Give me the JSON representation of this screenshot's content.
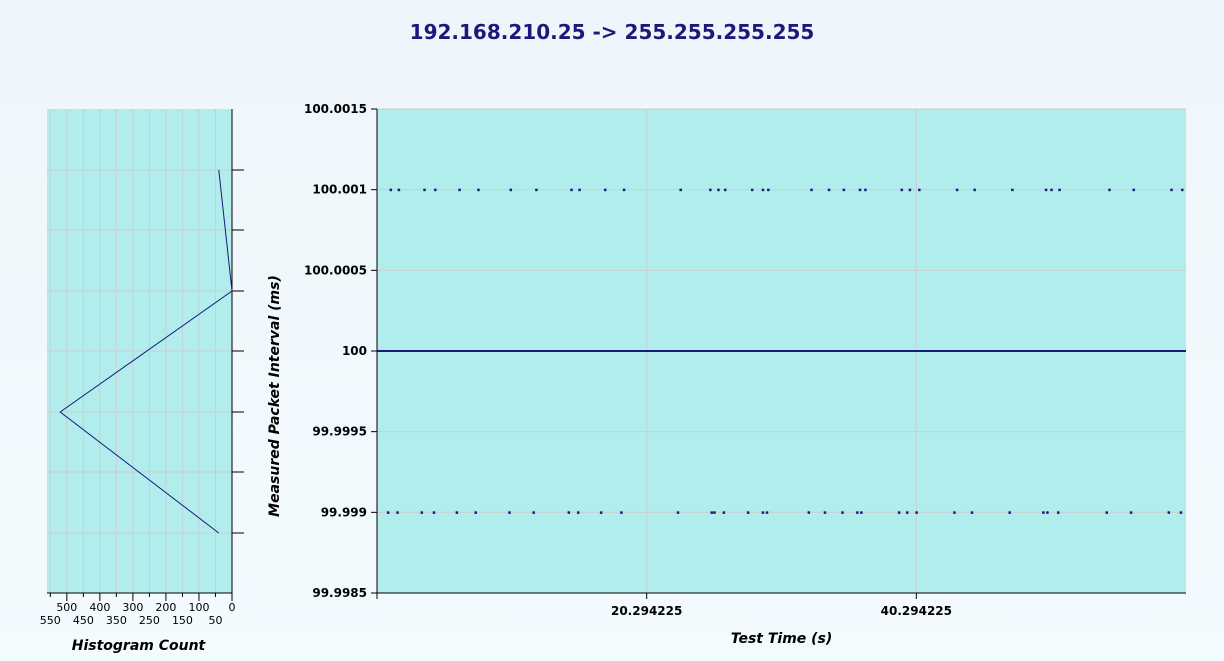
{
  "chart_data": [
    {
      "type": "scatter",
      "title": "192.168.210.25 -> 255.255.255.255",
      "xlabel": "Test Time (s)",
      "ylabel": "Measured Packet Interval (ms)",
      "xlim": [
        0.294225,
        60.294225
      ],
      "ylim": [
        99.9985,
        100.0015
      ],
      "x_ticks": [
        20.294225,
        40.294225
      ],
      "x_tick_labels": [
        "20.294225",
        "40.294225"
      ],
      "y_ticks": [
        99.9985,
        99.999,
        99.9995,
        100,
        100.0005,
        100.001,
        100.0015
      ],
      "y_tick_labels": [
        "99.9985",
        "99.999",
        "99.9995",
        "100",
        "100.0005",
        "100.001",
        "100.0015"
      ],
      "grid": true,
      "colors": {
        "plot_bg": "#b2eded",
        "series": "#1a1a7a",
        "grid": "#c8d0d0"
      },
      "series": [
        {
          "values_note_omitted": true,
          "x_high": [
            1.3,
            1.9,
            3.8,
            4.6,
            6.4,
            7.8,
            10.2,
            12.1,
            14.7,
            15.3,
            17.2,
            18.6,
            22.8,
            25.0,
            25.6,
            26.1,
            28.1,
            28.9,
            29.3,
            32.5,
            33.8,
            34.9,
            36.1,
            36.5,
            39.2,
            39.8,
            40.5,
            43.3,
            44.6,
            47.4,
            49.9,
            50.3,
            50.9,
            54.6,
            56.4,
            59.2,
            60.0
          ],
          "y_high": 100.001,
          "x_low": [
            1.1,
            1.8,
            3.6,
            4.5,
            6.2,
            7.6,
            10.1,
            11.9,
            14.5,
            15.2,
            16.9,
            18.4,
            22.6,
            25.1,
            25.3,
            26.0,
            27.8,
            28.9,
            29.2,
            32.3,
            33.5,
            34.8,
            35.9,
            36.2,
            39.0,
            39.6,
            40.3,
            43.1,
            44.4,
            47.2,
            49.7,
            50.0,
            50.8,
            54.4,
            56.2,
            59.0,
            59.9
          ],
          "y_low": 99.999,
          "y_main": 100
        }
      ]
    },
    {
      "type": "line",
      "xlabel": "Histogram Count",
      "x_reversed": true,
      "xlim": [
        0,
        560
      ],
      "x_ticks_major": [
        500,
        400,
        300,
        200,
        100,
        0
      ],
      "x_ticks_minor": [
        550,
        450,
        350,
        250,
        150,
        50
      ],
      "points": [
        {
          "count": 40,
          "interval": 100.001
        },
        {
          "count": 0,
          "interval": 100.0005
        },
        {
          "count": 0,
          "interval": 100.0005
        },
        {
          "count": 520,
          "interval": 99.9995
        },
        {
          "count": 40,
          "interval": 99.999
        }
      ],
      "ylim": [
        99.9985,
        100.0015
      ]
    }
  ]
}
